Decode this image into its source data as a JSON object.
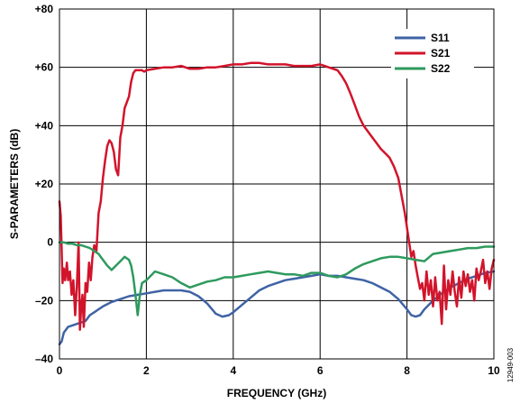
{
  "chart_data": {
    "type": "line",
    "xlabel": "FREQUENCY (GHz)",
    "ylabel": "S-PARAMETERS (dB)",
    "xlim": [
      0,
      10
    ],
    "ylim": [
      -40,
      80
    ],
    "x_ticks": [
      0,
      2,
      4,
      6,
      8,
      10
    ],
    "x_tick_labels": [
      "0",
      "2",
      "4",
      "6",
      "8",
      "10"
    ],
    "y_ticks": [
      -40,
      -20,
      0,
      20,
      40,
      60,
      80
    ],
    "y_tick_labels": [
      "–40",
      "–20",
      "0",
      "+20",
      "+40",
      "+60",
      "+80"
    ],
    "grid": true,
    "legend_position": "top-right",
    "figure_id": "12949-003",
    "series": [
      {
        "name": "S11",
        "color": "#3f63a5",
        "x": [
          0,
          0.05,
          0.1,
          0.2,
          0.3,
          0.4,
          0.5,
          0.6,
          0.7,
          0.8,
          0.9,
          1.0,
          1.2,
          1.4,
          1.6,
          1.8,
          2.0,
          2.2,
          2.4,
          2.6,
          2.8,
          3.0,
          3.2,
          3.4,
          3.6,
          3.75,
          3.9,
          4.0,
          4.2,
          4.4,
          4.6,
          4.8,
          5.0,
          5.2,
          5.4,
          5.6,
          5.8,
          6.0,
          6.2,
          6.4,
          6.6,
          6.8,
          7.0,
          7.2,
          7.4,
          7.6,
          7.8,
          8.0,
          8.1,
          8.2,
          8.3,
          8.4,
          8.6,
          8.8,
          9.0,
          9.2,
          9.4,
          9.6,
          9.8,
          10.0
        ],
        "y": [
          -35,
          -34,
          -31,
          -29,
          -28.5,
          -28,
          -27.5,
          -27,
          -25,
          -24,
          -23,
          -22,
          -20.5,
          -19.5,
          -18.5,
          -18,
          -17.5,
          -17,
          -16.5,
          -16.5,
          -16.5,
          -17,
          -18.5,
          -21,
          -24.5,
          -25.5,
          -25,
          -24,
          -21.5,
          -19,
          -16.5,
          -15,
          -14,
          -13,
          -12.5,
          -12,
          -11.5,
          -11,
          -11.5,
          -11.5,
          -12,
          -12.5,
          -13,
          -14,
          -15.5,
          -17,
          -19.5,
          -23,
          -25,
          -25.5,
          -25,
          -23,
          -20,
          -17.5,
          -15.5,
          -14,
          -12.5,
          -11.5,
          -10.5,
          -10
        ]
      },
      {
        "name": "S21",
        "color": "#d2142b",
        "x": [
          0,
          0.03,
          0.07,
          0.1,
          0.13,
          0.17,
          0.2,
          0.24,
          0.28,
          0.32,
          0.36,
          0.4,
          0.44,
          0.47,
          0.5,
          0.53,
          0.56,
          0.6,
          0.64,
          0.68,
          0.72,
          0.76,
          0.8,
          0.85,
          0.9,
          0.95,
          1.0,
          1.05,
          1.1,
          1.15,
          1.2,
          1.25,
          1.3,
          1.35,
          1.4,
          1.45,
          1.5,
          1.55,
          1.6,
          1.65,
          1.7,
          1.75,
          1.8,
          1.85,
          1.9,
          1.95,
          2.0,
          2.2,
          2.4,
          2.6,
          2.8,
          3.0,
          3.2,
          3.4,
          3.6,
          3.8,
          4.0,
          4.2,
          4.4,
          4.6,
          4.8,
          5.0,
          5.2,
          5.4,
          5.6,
          5.8,
          6.0,
          6.2,
          6.4,
          6.5,
          6.6,
          6.7,
          6.8,
          6.9,
          7.0,
          7.1,
          7.2,
          7.3,
          7.4,
          7.5,
          7.6,
          7.7,
          7.8,
          7.85,
          7.9,
          7.95,
          8.0,
          8.05,
          8.1,
          8.15,
          8.2,
          8.25,
          8.3,
          8.35,
          8.4,
          8.45,
          8.5,
          8.55,
          8.6,
          8.65,
          8.7,
          8.75,
          8.8,
          8.85,
          8.9,
          8.95,
          9.0,
          9.05,
          9.1,
          9.15,
          9.2,
          9.25,
          9.3,
          9.35,
          9.4,
          9.45,
          9.5,
          9.55,
          9.6,
          9.65,
          9.7,
          9.75,
          9.8,
          9.85,
          9.9,
          9.95,
          10.0
        ],
        "y": [
          14,
          9,
          -14,
          -9,
          -13,
          -7,
          -13,
          -10,
          -18,
          -13,
          -25,
          -15,
          0,
          -30,
          -22,
          -18,
          -29,
          -14,
          -17,
          -7,
          -13,
          -5,
          -1,
          -3,
          10,
          14,
          22,
          28,
          33,
          35,
          34,
          31,
          25,
          23,
          36,
          40,
          46,
          48,
          50,
          55,
          58,
          59,
          59,
          59,
          59,
          58.5,
          59,
          59.5,
          60,
          60,
          60.5,
          59.5,
          59.5,
          60,
          60,
          60.5,
          61,
          61,
          61.5,
          61.5,
          61,
          61,
          61,
          60.5,
          60.5,
          60.5,
          61,
          60,
          59,
          57,
          54.5,
          51,
          47,
          43,
          40,
          38,
          36,
          34,
          32,
          30.5,
          29,
          26,
          22,
          18,
          14,
          10,
          5,
          0,
          -5,
          -3,
          -8,
          -12,
          -16,
          -14,
          -20,
          -10,
          -18,
          -13,
          -22,
          -12,
          -20,
          -17,
          -28,
          -8,
          -23,
          -13,
          -18,
          -10,
          -17,
          -22,
          -12,
          -19,
          -10,
          -15,
          -11,
          -17,
          -13,
          -20,
          -9,
          -13,
          -10,
          -6,
          -14,
          -10,
          -16,
          -9,
          -6
        ]
      },
      {
        "name": "S22",
        "color": "#2e9a5e",
        "x": [
          0,
          0.1,
          0.2,
          0.3,
          0.4,
          0.5,
          0.6,
          0.7,
          0.8,
          0.9,
          1.0,
          1.1,
          1.2,
          1.3,
          1.4,
          1.5,
          1.6,
          1.65,
          1.7,
          1.75,
          1.8,
          1.85,
          1.9,
          2.0,
          2.2,
          2.4,
          2.6,
          2.8,
          3.0,
          3.2,
          3.4,
          3.6,
          3.8,
          4.0,
          4.2,
          4.4,
          4.6,
          4.8,
          5.0,
          5.2,
          5.4,
          5.6,
          5.8,
          6.0,
          6.2,
          6.4,
          6.6,
          6.8,
          7.0,
          7.2,
          7.4,
          7.6,
          7.8,
          8.0,
          8.2,
          8.4,
          8.6,
          8.8,
          9.0,
          9.2,
          9.4,
          9.6,
          9.8,
          10.0
        ],
        "y": [
          0,
          0,
          -0.5,
          -0.5,
          -1,
          -1,
          -1.5,
          -2,
          -3,
          -4,
          -6,
          -8,
          -9.5,
          -8,
          -6.5,
          -5,
          -6,
          -8,
          -12,
          -18,
          -25,
          -18,
          -14,
          -13,
          -10,
          -11,
          -12,
          -14,
          -15.5,
          -14.5,
          -13.5,
          -13,
          -12,
          -12,
          -11.5,
          -11,
          -10.5,
          -10,
          -10.5,
          -11,
          -11,
          -11.5,
          -10.5,
          -10.5,
          -11.5,
          -12,
          -11,
          -9,
          -7.5,
          -6.5,
          -5.5,
          -5,
          -5,
          -5.5,
          -6,
          -6.5,
          -4,
          -3.5,
          -3,
          -2.5,
          -2,
          -2,
          -1.5,
          -1.5
        ]
      }
    ]
  }
}
